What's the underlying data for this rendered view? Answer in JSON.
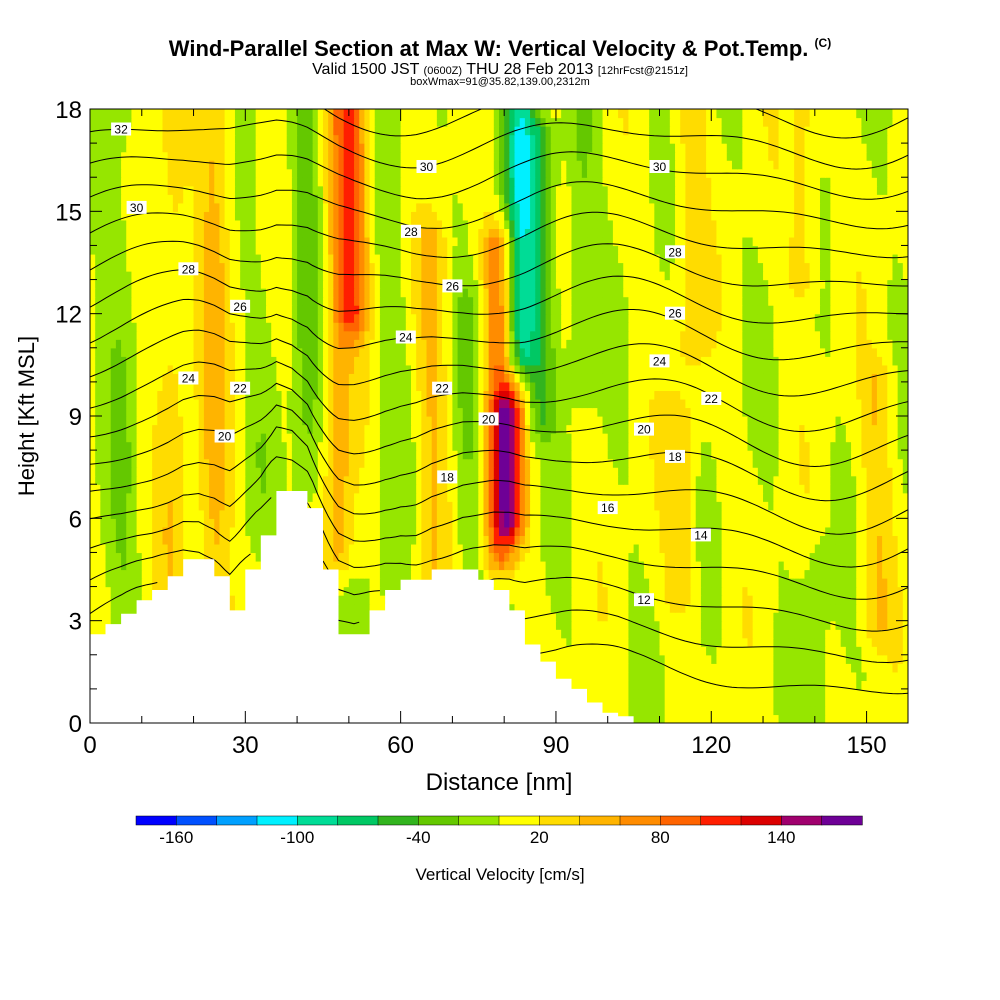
{
  "header": {
    "title": "Wind-Parallel Section at Max W: Vertical Velocity & Pot.Temp.",
    "title_suffix": "(C)",
    "valid_a": "Valid 1500 JST",
    "valid_b": "(0600Z)",
    "valid_c": "THU 28 Feb 2013",
    "valid_d": "[12hrFcst@2151z]",
    "box": "boxWmax=91@35.82,139.00,2312m"
  },
  "chart_data": {
    "type": "heatmap",
    "xlabel": "Distance [nm]",
    "ylabel": "Height [Kft MSL]",
    "xlim": [
      0,
      158
    ],
    "ylim": [
      0,
      18
    ],
    "x_ticks": [
      0,
      30,
      60,
      90,
      120,
      150
    ],
    "y_ticks": [
      0,
      3,
      6,
      9,
      12,
      15,
      18
    ],
    "colorbar": {
      "label": "Vertical Velocity [cm/s]",
      "tick_labels": [
        "-160",
        "-100",
        "-40",
        "20",
        "80",
        "140"
      ],
      "tick_values": [
        -160,
        -100,
        -40,
        20,
        80,
        140
      ],
      "range": [
        -180,
        180
      ],
      "step": 20,
      "colors": [
        "#0000ff",
        "#0050ff",
        "#00a0ff",
        "#00f0ff",
        "#00dc96",
        "#00c864",
        "#32b41e",
        "#64c800",
        "#96e600",
        "#ffff00",
        "#ffdc00",
        "#ffb400",
        "#ff8c00",
        "#ff6400",
        "#ff1e00",
        "#dc0000",
        "#a0006e",
        "#6e0096"
      ]
    },
    "background_w_cms": 5,
    "w_features": [
      {
        "x": 6,
        "ylo": 2,
        "yhi": 18,
        "w": -20
      },
      {
        "x": 16,
        "ylo": 4,
        "yhi": 18,
        "w": 25
      },
      {
        "x": 24,
        "ylo": 3,
        "yhi": 18,
        "w": 40
      },
      {
        "x": 33,
        "ylo": 6,
        "yhi": 18,
        "w": -10
      },
      {
        "x": 42,
        "ylo": 7,
        "yhi": 18,
        "w": -30
      },
      {
        "x": 48,
        "ylo": 5,
        "yhi": 18,
        "w": 45
      },
      {
        "x": 51,
        "ylo": 12,
        "yhi": 18,
        "w": 75
      },
      {
        "x": 58,
        "ylo": 4,
        "yhi": 18,
        "w": -15
      },
      {
        "x": 66,
        "ylo": 4,
        "yhi": 14,
        "w": 35
      },
      {
        "x": 73,
        "ylo": 4,
        "yhi": 12,
        "w": -25
      },
      {
        "x": 79,
        "ylo": 5,
        "yhi": 14,
        "w": 75
      },
      {
        "x": 81,
        "ylo": 6,
        "yhi": 9,
        "w": 100
      },
      {
        "x": 83,
        "ylo": 11,
        "yhi": 18,
        "w": -90
      },
      {
        "x": 87,
        "ylo": 9,
        "yhi": 17,
        "w": -45
      },
      {
        "x": 95,
        "ylo": 10,
        "yhi": 18,
        "w": -25
      },
      {
        "x": 114,
        "ylo": 4,
        "yhi": 9,
        "w": 30
      },
      {
        "x": 116,
        "ylo": 11,
        "yhi": 18,
        "w": 25
      },
      {
        "x": 138,
        "ylo": 13,
        "yhi": 18,
        "w": 25
      },
      {
        "x": 152,
        "ylo": 3,
        "yhi": 10,
        "w": 30
      },
      {
        "x": 140,
        "ylo": 0,
        "yhi": 5,
        "w": -15
      }
    ],
    "terrain": {
      "x": [
        0,
        3,
        6,
        9,
        12,
        15,
        18,
        21,
        24,
        27,
        30,
        33,
        36,
        39,
        42,
        45,
        48,
        51,
        54,
        57,
        60,
        63,
        66,
        69,
        72,
        75,
        78,
        81,
        84,
        87,
        90,
        93,
        96,
        99,
        102,
        105,
        158
      ],
      "height_kft": [
        2.6,
        2.9,
        3.2,
        3.6,
        3.9,
        4.3,
        4.8,
        4.8,
        4.3,
        3.3,
        4.5,
        5.5,
        6.8,
        6.8,
        6.3,
        4.5,
        2.6,
        2.6,
        3.3,
        3.9,
        4.2,
        4.2,
        4.5,
        4.5,
        4.5,
        4.2,
        3.9,
        3.3,
        2.3,
        1.8,
        1.3,
        1.0,
        0.6,
        0.3,
        0.2,
        0.0,
        0.0
      ]
    },
    "theta_contours": {
      "values": [
        10,
        11,
        12,
        13,
        14,
        15,
        16,
        17,
        18,
        19,
        20,
        21,
        22,
        23,
        24,
        25,
        26,
        27,
        28,
        29,
        30,
        31,
        32
      ],
      "labeled": [
        {
          "text": "32",
          "x": 6,
          "y": 17.4
        },
        {
          "text": "30",
          "x": 9,
          "y": 15.1
        },
        {
          "text": "28",
          "x": 19,
          "y": 13.3
        },
        {
          "text": "26",
          "x": 29,
          "y": 12.2
        },
        {
          "text": "24",
          "x": 19,
          "y": 10.1
        },
        {
          "text": "22",
          "x": 29,
          "y": 9.8
        },
        {
          "text": "20",
          "x": 26,
          "y": 8.4
        },
        {
          "text": "30",
          "x": 65,
          "y": 16.3
        },
        {
          "text": "28",
          "x": 62,
          "y": 14.4
        },
        {
          "text": "26",
          "x": 70,
          "y": 12.8
        },
        {
          "text": "24",
          "x": 61,
          "y": 11.3
        },
        {
          "text": "22",
          "x": 68,
          "y": 9.8
        },
        {
          "text": "18",
          "x": 69,
          "y": 7.2
        },
        {
          "text": "20",
          "x": 77,
          "y": 8.9
        },
        {
          "text": "30",
          "x": 110,
          "y": 16.3
        },
        {
          "text": "28",
          "x": 113,
          "y": 13.8
        },
        {
          "text": "26",
          "x": 113,
          "y": 12.0
        },
        {
          "text": "24",
          "x": 110,
          "y": 10.6
        },
        {
          "text": "22",
          "x": 120,
          "y": 9.5
        },
        {
          "text": "20",
          "x": 107,
          "y": 8.6
        },
        {
          "text": "18",
          "x": 113,
          "y": 7.8
        },
        {
          "text": "16",
          "x": 100,
          "y": 6.3
        },
        {
          "text": "14",
          "x": 118,
          "y": 5.5
        },
        {
          "text": "12",
          "x": 107,
          "y": 3.6
        }
      ]
    }
  }
}
